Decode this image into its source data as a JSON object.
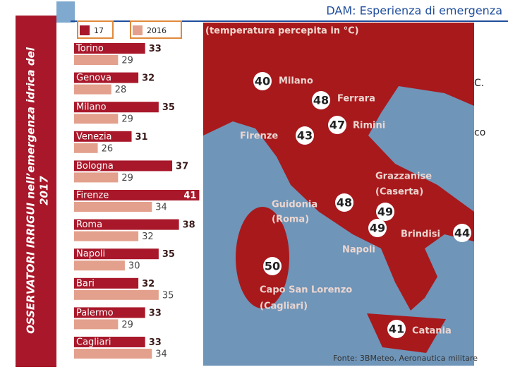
{
  "slide": {
    "header": "DAM: Esperienza di emergenza",
    "side_title": "OSSERVATORI IRRIGUI nell’emergenza idrica del",
    "side_year": "2017",
    "notes": [
      "C.",
      "co"
    ]
  },
  "chart_data": {
    "type": "hbar",
    "categories": [
      "Torino",
      "Genova",
      "Milano",
      "Venezia",
      "Bologna",
      "Firenze",
      "Roma",
      "Napoli",
      "Bari",
      "Palermo",
      "Cagliari"
    ],
    "series": [
      {
        "name": "17",
        "color": "#a8182a",
        "values": [
          33,
          32,
          35,
          31,
          37,
          41,
          38,
          35,
          32,
          33,
          33
        ]
      },
      {
        "name": "2016",
        "color": "#e3a08c",
        "values": [
          29,
          28,
          29,
          26,
          29,
          34,
          32,
          30,
          35,
          29,
          34
        ]
      }
    ],
    "xlim": [
      22.5,
      42
    ]
  },
  "map": {
    "title": "(temperatura percepita in °C)",
    "source": "Fonte: 3BMeteo, Aeronautica militare",
    "stations": [
      {
        "name": "Milano",
        "value": 40
      },
      {
        "name": "Ferrara",
        "value": 48
      },
      {
        "name": "Firenze",
        "value": 43
      },
      {
        "name": "Rimini",
        "value": 47
      },
      {
        "name": "Guidonia",
        "sub": "(Roma)",
        "value": 48
      },
      {
        "name": "Grazzanise",
        "sub": "(Caserta)",
        "value": 49
      },
      {
        "name": "Napoli",
        "value": 49
      },
      {
        "name": "Brindisi",
        "value": 44
      },
      {
        "name": "Capo San Lorenzo",
        "sub": "(Cagliari)",
        "value": 50
      },
      {
        "name": "Catania",
        "value": 41
      }
    ]
  }
}
